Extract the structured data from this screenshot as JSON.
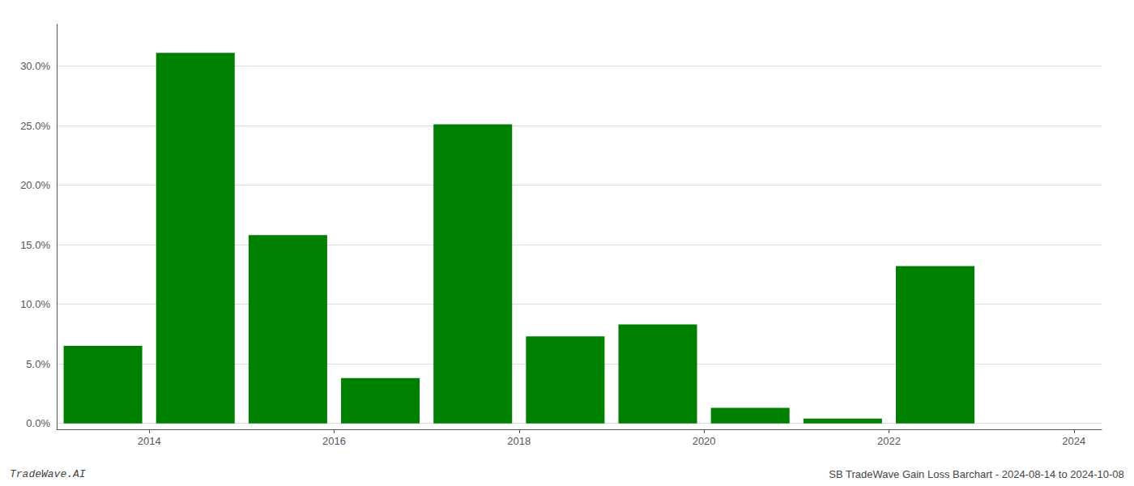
{
  "chart_data": {
    "type": "bar",
    "x": [
      2013.5,
      2014.5,
      2015.5,
      2016.5,
      2017.5,
      2018.5,
      2019.5,
      2020.5,
      2021.5,
      2022.5,
      2023.5
    ],
    "values": [
      0.065,
      0.311,
      0.158,
      0.038,
      0.251,
      0.073,
      0.083,
      0.013,
      0.004,
      0.132,
      0.0
    ],
    "color": "#008000",
    "xlim": [
      2013.0,
      2024.3
    ],
    "xticks": [
      2014,
      2016,
      2018,
      2020,
      2022,
      2024
    ],
    "ylim": [
      -0.005,
      0.335
    ],
    "yticks": [
      {
        "value": 0.0,
        "label": "0.0%"
      },
      {
        "value": 0.05,
        "label": "5.0%"
      },
      {
        "value": 0.1,
        "label": "10.0%"
      },
      {
        "value": 0.15,
        "label": "15.0%"
      },
      {
        "value": 0.2,
        "label": "20.0%"
      },
      {
        "value": 0.25,
        "label": "25.0%"
      },
      {
        "value": 0.3,
        "label": "30.0%"
      }
    ],
    "grid": true,
    "annotations": [
      "TradeWave.AI",
      "SB TradeWave Gain Loss Barchart - 2024-08-14 to 2024-10-08"
    ]
  }
}
